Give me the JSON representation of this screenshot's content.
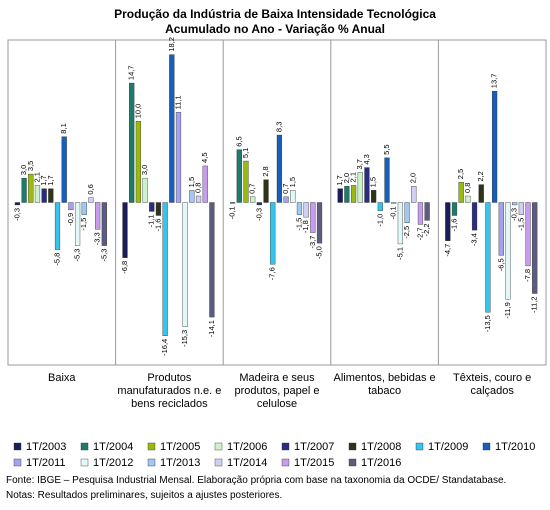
{
  "chart_data": {
    "type": "bar",
    "title": "Produção da Indústria de Baixa Intensidade Tecnológica",
    "subtitle": "Acumulado no Ano - Variação % Anual",
    "categories": [
      "Baixa",
      "Produtos manufaturados n.e. e bens reciclados",
      "Madeira e seus produtos, papel e celulose",
      "Alimentos, bebidas e tabaco",
      "Têxteis, couro e calçados"
    ],
    "ylim": [
      -20,
      20
    ],
    "series": [
      {
        "name": "1T/2003",
        "color": "#1c1c5a",
        "values": [
          -0.3,
          -6.8,
          -0.1,
          1.7,
          -4.7
        ],
        "value_labels": [
          "-0,3",
          "-6,8",
          "-0,1",
          "1,7",
          "-4,7"
        ]
      },
      {
        "name": "1T/2004",
        "color": "#1e7b6b",
        "values": [
          3.0,
          14.7,
          6.5,
          2.0,
          -1.6
        ],
        "value_labels": [
          "3,0",
          "14,7",
          "6,5",
          "2,0",
          "-1,6"
        ]
      },
      {
        "name": "1T/2005",
        "color": "#99bb11",
        "values": [
          3.5,
          10.0,
          5.1,
          2.1,
          2.5
        ],
        "value_labels": [
          "3,5",
          "10,0",
          "5,1",
          "2,1",
          "2,5"
        ]
      },
      {
        "name": "1T/2006",
        "color": "#ccf2cc",
        "values": [
          2.1,
          3.0,
          0.7,
          3.7,
          0.8
        ],
        "value_labels": [
          "2,1",
          "3,0",
          "0,7",
          "3,7",
          "0,8"
        ]
      },
      {
        "name": "1T/2007",
        "color": "#2b2b80",
        "values": [
          1.7,
          -1.1,
          -0.3,
          4.3,
          -3.4
        ],
        "value_labels": [
          "1,7",
          "-1,1",
          "-0,3",
          "4,3",
          "-3,4"
        ]
      },
      {
        "name": "1T/2008",
        "color": "#2e3319",
        "values": [
          1.7,
          -1.6,
          2.8,
          1.5,
          2.2
        ],
        "value_labels": [
          "1,7",
          "-1,6",
          "2,8",
          "1,5",
          "2,2"
        ]
      },
      {
        "name": "1T/2009",
        "color": "#33c4f0",
        "values": [
          -5.8,
          -16.4,
          -7.6,
          -1.0,
          -13.5
        ],
        "value_labels": [
          "-5,8",
          "-16,4",
          "-7,6",
          "-1,0",
          "-13,5"
        ]
      },
      {
        "name": "1T/2010",
        "color": "#1660bb",
        "values": [
          8.1,
          18.2,
          8.3,
          5.5,
          13.7
        ],
        "value_labels": [
          "8,1",
          "18,2",
          "8,3",
          "5,5",
          "13,7"
        ]
      },
      {
        "name": "1T/2011",
        "color": "#a3a3ee",
        "values": [
          -0.9,
          11.1,
          0.7,
          -0.1,
          -6.5
        ],
        "value_labels": [
          "-0,9",
          "11,1",
          "0,7",
          "-0,1",
          "-6,5"
        ]
      },
      {
        "name": "1T/2012",
        "color": "#e2f8f8",
        "values": [
          -5.3,
          -15.3,
          1.5,
          -5.1,
          -11.9
        ],
        "value_labels": [
          "-5,3",
          "-15,3",
          "1,5",
          "-5,1",
          "-11,9"
        ]
      },
      {
        "name": "1T/2013",
        "color": "#9fc8f2",
        "values": [
          -1.5,
          1.5,
          -1.5,
          -2.5,
          -0.3
        ],
        "value_labels": [
          "-1,5",
          "1,5",
          "-1,5",
          "-2,5",
          "-0,3"
        ]
      },
      {
        "name": "1T/2014",
        "color": "#d0d0f6",
        "values": [
          0.6,
          0.8,
          -1.8,
          2.0,
          -1.5
        ],
        "value_labels": [
          "0,6",
          "0,8",
          "-1,8",
          "2,0",
          "-1,5"
        ]
      },
      {
        "name": "1T/2015",
        "color": "#c89cec",
        "values": [
          -3.3,
          4.5,
          -3.7,
          -2.7,
          -7.8
        ],
        "value_labels": [
          "-3,3",
          "4,5",
          "-3,7",
          "-2,7",
          "-7,8"
        ]
      },
      {
        "name": "1T/2016",
        "color": "#5c5c80",
        "values": [
          -5.3,
          -14.1,
          -5.0,
          -2.2,
          -11.2
        ],
        "value_labels": [
          "-5,3",
          "-14,1",
          "-5,0",
          "-2,2",
          "-11,2"
        ]
      }
    ],
    "notes": [
      "Fonte: IBGE – Pesquisa Industrial Mensal. Elaboração própria com base na taxonomia da OCDE/ Standatabase.",
      "Notas: Resultados preliminares, sujeitos a ajustes posteriores."
    ]
  }
}
